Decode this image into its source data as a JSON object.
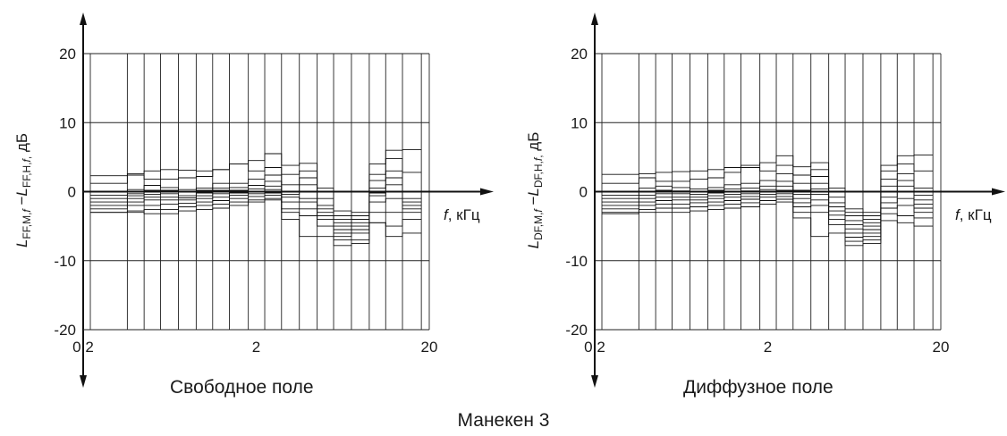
{
  "figure_title": "Манекен 3",
  "chart_data": [
    {
      "type": "line",
      "subtitle": "Свободное поле",
      "ylabel": {
        "main1": "L",
        "sub1": "FF,M,",
        "it1": "f",
        "minus": " −",
        "main2": "L",
        "sub2": "FF,H,",
        "it2": "f",
        "sub2b": ",",
        "unit": " дБ"
      },
      "xlabel": {
        "italic": "f",
        "rest": ", кГц"
      },
      "xscale": "log",
      "xlim": [
        0.2,
        20
      ],
      "ylim": [
        -20,
        20
      ],
      "xticks": [
        {
          "value": 0.2,
          "label": "0,2"
        },
        {
          "value": 2,
          "label": "2"
        },
        {
          "value": 20,
          "label": "20"
        }
      ],
      "yticks": [
        {
          "value": 20,
          "label": "20"
        },
        {
          "value": 10,
          "label": "10"
        },
        {
          "value": 0,
          "label": "0"
        },
        {
          "value": -10,
          "label": "-10"
        },
        {
          "value": -20,
          "label": "-20"
        }
      ],
      "grid": true,
      "band_edges": [
        0.22,
        0.36,
        0.45,
        0.56,
        0.71,
        0.9,
        1.12,
        1.4,
        1.8,
        2.24,
        2.8,
        3.55,
        4.5,
        5.6,
        7.1,
        9,
        11.2,
        14,
        18
      ],
      "series": [
        {
          "values": [
            2.3,
            2.6,
            3.0,
            3.2,
            3.1,
            3.0,
            3.2,
            4.0,
            4.5,
            5.5,
            3.8,
            4.1,
            0.0,
            -2.8,
            -4.0,
            4.0,
            6.0,
            6.1
          ]
        },
        {
          "values": [
            1.2,
            2.4,
            1.8,
            1.8,
            2.0,
            2.2,
            3.2,
            4.0,
            3.0,
            3.5,
            2.5,
            3.0,
            0.5,
            -3.5,
            -3.0,
            2.5,
            4.8,
            2.8
          ]
        },
        {
          "values": [
            0.0,
            0.3,
            0.9,
            0.6,
            0.3,
            0.5,
            1.2,
            1.2,
            1.8,
            2.4,
            1.0,
            2.0,
            -1.0,
            -4.0,
            -3.5,
            1.6,
            3.0,
            0.0
          ]
        },
        {
          "values": [
            -0.5,
            -0.3,
            0.2,
            0.2,
            0.0,
            0.2,
            0.5,
            0.6,
            0.9,
            1.5,
            0.0,
            1.0,
            -2.0,
            -4.5,
            -4.0,
            0.5,
            2.0,
            -1.0
          ]
        },
        {
          "values": [
            -1.0,
            -0.6,
            -0.4,
            -0.3,
            -0.6,
            -0.2,
            0.2,
            0.2,
            0.4,
            0.8,
            -0.4,
            0.0,
            -2.5,
            -5.0,
            -4.5,
            -0.2,
            1.0,
            -1.5
          ]
        },
        {
          "values": [
            -1.5,
            -1.0,
            -0.8,
            -0.8,
            -0.9,
            -0.6,
            -0.3,
            -0.2,
            0.0,
            0.3,
            -0.8,
            -1.0,
            -3.0,
            -5.5,
            -5.0,
            -0.6,
            0.0,
            -2.0
          ]
        },
        {
          "values": [
            -2.0,
            -1.5,
            -1.2,
            -1.2,
            -1.2,
            -1.0,
            -0.8,
            -0.5,
            -0.3,
            -0.2,
            -1.5,
            -1.5,
            -3.5,
            -6.0,
            -5.5,
            -1.5,
            -1.0,
            -2.5
          ]
        },
        {
          "values": [
            -2.5,
            -2.0,
            -2.0,
            -1.8,
            -1.7,
            -1.5,
            -1.3,
            -1.0,
            -0.7,
            -0.5,
            -2.5,
            -2.5,
            -4.0,
            -6.5,
            -6.0,
            -3.0,
            -3.0,
            -3.0
          ]
        },
        {
          "values": [
            -3.0,
            -2.8,
            -2.6,
            -2.6,
            -2.2,
            -2.0,
            -1.8,
            -1.5,
            -1.2,
            -1.0,
            -3.0,
            -3.5,
            -5.0,
            -7.0,
            -7.0,
            -4.5,
            -5.0,
            -4.0
          ]
        },
        {
          "values": [
            -3.0,
            -3.0,
            -3.2,
            -3.2,
            -2.8,
            -2.6,
            -2.4,
            -2.0,
            -1.5,
            -1.2,
            -4.0,
            -6.5,
            -6.5,
            -7.8,
            -7.5,
            -4.5,
            -6.5,
            -6.0
          ]
        }
      ]
    },
    {
      "type": "line",
      "subtitle": "Диффузное поле",
      "ylabel": {
        "main1": "L",
        "sub1": "DF,M,",
        "it1": "f",
        "minus": " −",
        "main2": "L",
        "sub2": "DF,H,",
        "it2": "f",
        "sub2b": ",",
        "unit": " дБ"
      },
      "xlabel": {
        "italic": "f",
        "rest": ", кГц"
      },
      "xscale": "log",
      "xlim": [
        0.2,
        20
      ],
      "ylim": [
        -20,
        20
      ],
      "xticks": [
        {
          "value": 0.2,
          "label": "0,2"
        },
        {
          "value": 2,
          "label": "2"
        },
        {
          "value": 20,
          "label": "20"
        }
      ],
      "yticks": [
        {
          "value": 20,
          "label": "20"
        },
        {
          "value": 10,
          "label": "10"
        },
        {
          "value": 0,
          "label": "0"
        },
        {
          "value": -10,
          "label": "-10"
        },
        {
          "value": -20,
          "label": "-20"
        }
      ],
      "grid": true,
      "band_edges": [
        0.22,
        0.36,
        0.45,
        0.56,
        0.71,
        0.9,
        1.12,
        1.4,
        1.8,
        2.24,
        2.8,
        3.55,
        4.5,
        5.6,
        7.1,
        9,
        11.2,
        14,
        18
      ],
      "series": [
        {
          "values": [
            2.5,
            2.6,
            2.8,
            2.9,
            3.0,
            3.2,
            3.5,
            3.8,
            4.2,
            5.2,
            3.6,
            4.2,
            0.5,
            -2.5,
            -3.0,
            3.8,
            5.2,
            5.3
          ]
        },
        {
          "values": [
            1.2,
            2.0,
            1.5,
            1.5,
            1.8,
            2.0,
            2.8,
            3.5,
            3.0,
            3.8,
            2.4,
            3.2,
            0.0,
            -3.0,
            -3.5,
            3.0,
            4.0,
            3.0
          ]
        },
        {
          "values": [
            0.0,
            0.5,
            0.8,
            0.6,
            0.4,
            0.6,
            1.0,
            1.2,
            1.6,
            2.6,
            1.2,
            2.2,
            -0.8,
            -3.5,
            -4.0,
            1.8,
            2.6,
            0.5
          ]
        },
        {
          "values": [
            -0.5,
            0.0,
            0.2,
            0.1,
            0.0,
            0.2,
            0.4,
            0.5,
            0.8,
            1.5,
            0.2,
            1.2,
            -1.6,
            -4.2,
            -4.5,
            0.8,
            1.6,
            -0.5
          ]
        },
        {
          "values": [
            -1.0,
            -0.5,
            -0.3,
            -0.3,
            -0.4,
            -0.2,
            0.0,
            0.1,
            0.3,
            0.8,
            -0.4,
            0.4,
            -2.2,
            -4.8,
            -5.0,
            0.0,
            0.8,
            -1.2
          ]
        },
        {
          "values": [
            -1.5,
            -1.0,
            -0.8,
            -0.8,
            -0.8,
            -0.6,
            -0.4,
            -0.3,
            0.0,
            0.2,
            -1.0,
            -0.4,
            -2.8,
            -5.4,
            -5.5,
            -0.8,
            0.0,
            -1.8
          ]
        },
        {
          "values": [
            -2.0,
            -1.5,
            -1.3,
            -1.2,
            -1.2,
            -1.0,
            -0.8,
            -0.7,
            -0.4,
            -0.3,
            -1.6,
            -1.2,
            -3.4,
            -6.0,
            -6.0,
            -1.6,
            -1.0,
            -2.4
          ]
        },
        {
          "values": [
            -2.5,
            -2.0,
            -1.8,
            -1.8,
            -1.6,
            -1.5,
            -1.3,
            -1.1,
            -0.8,
            -0.7,
            -2.2,
            -2.0,
            -4.0,
            -6.6,
            -6.5,
            -2.4,
            -2.0,
            -3.0
          ]
        },
        {
          "values": [
            -3.0,
            -2.6,
            -2.4,
            -2.4,
            -2.2,
            -2.0,
            -1.8,
            -1.6,
            -1.3,
            -1.1,
            -3.0,
            -3.0,
            -4.8,
            -7.2,
            -7.0,
            -3.2,
            -3.5,
            -3.8
          ]
        },
        {
          "values": [
            -3.2,
            -3.0,
            -3.0,
            -3.0,
            -2.8,
            -2.6,
            -2.4,
            -2.2,
            -1.8,
            -1.5,
            -3.8,
            -6.5,
            -6.0,
            -7.8,
            -7.5,
            -4.2,
            -4.5,
            -5.0
          ]
        }
      ]
    }
  ]
}
